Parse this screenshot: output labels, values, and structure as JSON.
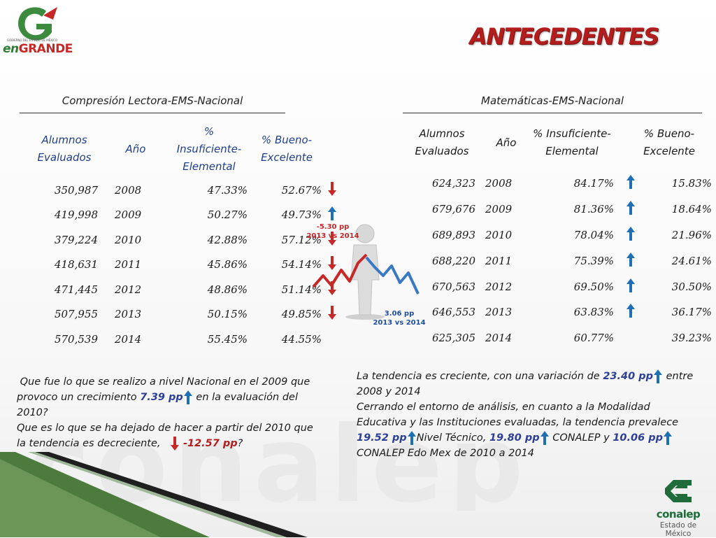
{
  "page": {
    "title": "ANTECEDENTES",
    "watermark": "conalep"
  },
  "logo": {
    "tiny_text": "GOBIERNO DEL ESTADO DE MÉXICO",
    "word_en": "en",
    "word_grande": "GRANDE"
  },
  "left_table": {
    "title": "Compresión Lectora-EMS-Nacional",
    "headers": [
      "Alumnos Evaluados",
      "Año",
      "% Insuficiente-Elemental",
      "% Bueno-Excelente"
    ],
    "rows": [
      {
        "alumnos": "350,987",
        "anio": "2008",
        "insuficiente": "47.33%",
        "bueno": "52.67%",
        "arrow": "down"
      },
      {
        "alumnos": "419,998",
        "anio": "2009",
        "insuficiente": "50.27%",
        "bueno": "49.73%",
        "arrow": "up"
      },
      {
        "alumnos": "379,224",
        "anio": "2010",
        "insuficiente": "42.88%",
        "bueno": "57.12%",
        "arrow": "down"
      },
      {
        "alumnos": "418,631",
        "anio": "2011",
        "insuficiente": "45.86%",
        "bueno": "54.14%",
        "arrow": "down"
      },
      {
        "alumnos": "471,445",
        "anio": "2012",
        "insuficiente": "48.86%",
        "bueno": "51.14%",
        "arrow": "down"
      },
      {
        "alumnos": "507,955",
        "anio": "2013",
        "insuficiente": "50.15%",
        "bueno": "49.85%",
        "arrow": "down"
      },
      {
        "alumnos": "570,539",
        "anio": "2014",
        "insuficiente": "55.45%",
        "bueno": "44.55%",
        "arrow": "none"
      }
    ]
  },
  "right_table": {
    "title": "Matemáticas-EMS-Nacional",
    "headers": [
      "Alumnos Evaluados",
      "Año",
      "% Insuficiente-Elemental",
      "% Bueno-Excelente"
    ],
    "rows": [
      {
        "alumnos": "624,323",
        "anio": "2008",
        "insuficiente": "84.17%",
        "bueno": "15.83%",
        "arrow": "up"
      },
      {
        "alumnos": "679,676",
        "anio": "2009",
        "insuficiente": "81.36%",
        "bueno": "18.64%",
        "arrow": "up"
      },
      {
        "alumnos": "689,893",
        "anio": "2010",
        "insuficiente": "78.04%",
        "bueno": "21.96%",
        "arrow": "up"
      },
      {
        "alumnos": "688,220",
        "anio": "2011",
        "insuficiente": "75.39%",
        "bueno": "24.61%",
        "arrow": "up"
      },
      {
        "alumnos": "670,563",
        "anio": "2012",
        "insuficiente": "69.50%",
        "bueno": "30.50%",
        "arrow": "up"
      },
      {
        "alumnos": "646,553",
        "anio": "2013",
        "insuficiente": "63.83%",
        "bueno": "36.17%",
        "arrow": "up"
      },
      {
        "alumnos": "625,305",
        "anio": "2014",
        "insuficiente": "60.77%",
        "bueno": "39.23%",
        "arrow": "none"
      }
    ]
  },
  "notes": {
    "red": {
      "value": "-5.30 pp",
      "period": "2013 vs 2014"
    },
    "blue": {
      "value": "3.06 pp",
      "period": "2013 vs 2014"
    }
  },
  "left_text": {
    "p1_a": "Que fue lo que se realizo a nivel Nacional en el 2009 que provoco un crecimiento ",
    "p1_value": "7.39 pp",
    "p1_b": " en la evaluación del 2010?",
    "p2_a": "Que es lo que se ha dejado de hacer a partir del 2010 que la tendencia es decreciente, ",
    "p2_value": "-12.57 pp",
    "p2_b": "?"
  },
  "right_text": {
    "a": "La tendencia es creciente, con una variación de ",
    "v1": "23.40 pp",
    "b": " entre 2008 y 2014",
    "c": "Cerrando el entorno de análisis, en cuanto a la Modalidad Educativa y las Instituciones evaluadas, la tendencia prevalece ",
    "v2": "19.52 pp",
    "d": "Nivel Técnico, ",
    "v3": "19.80 pp",
    "e": " CONALEP y ",
    "v4": "10.06 pp",
    "f": "CONALEP Edo Mex de 2010 a 2014"
  },
  "footer_logo": {
    "name": "conalep",
    "sub": "Estado de México"
  },
  "colors": {
    "title": "#b21e1e",
    "arrow_down": "#c62828",
    "arrow_up": "#1f6fb5",
    "highlight_blue": "#2d3f99",
    "brand_green": "#1f6b3a"
  }
}
